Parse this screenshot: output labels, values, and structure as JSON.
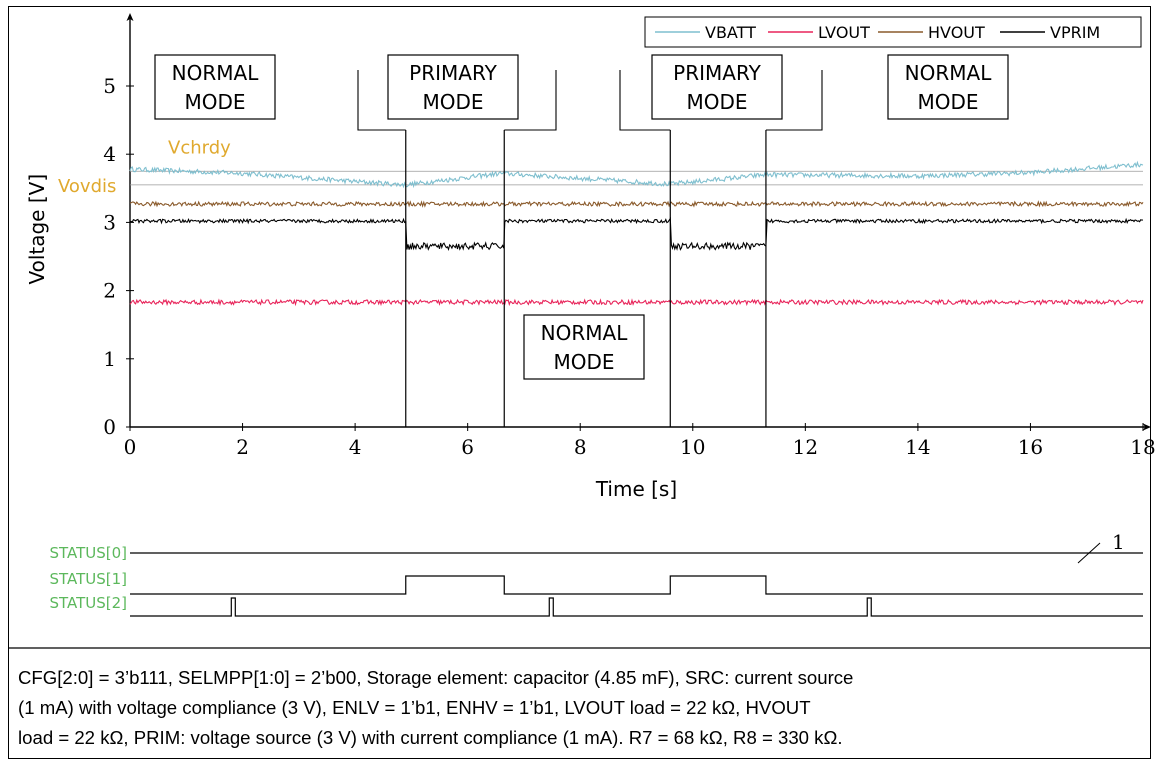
{
  "chart_data": {
    "type": "line",
    "xlabel": "Time [s]",
    "ylabel": "Voltage [V]",
    "xlim": [
      0,
      18
    ],
    "ylim": [
      0,
      5.8
    ],
    "x_ticks": [
      0,
      2,
      4,
      6,
      8,
      10,
      12,
      14,
      16,
      18
    ],
    "y_ticks": [
      0,
      1,
      2,
      3,
      4,
      5
    ],
    "grid": false,
    "legend_position": "top-right",
    "series": [
      {
        "name": "VBATT",
        "color": "#7fbfcf",
        "x": [
          0,
          2,
          4,
          4.9,
          6.6,
          9.6,
          11.3,
          14,
          16,
          18
        ],
        "y": [
          3.78,
          3.72,
          3.6,
          3.55,
          3.72,
          3.56,
          3.7,
          3.68,
          3.73,
          3.85
        ]
      },
      {
        "name": "LVOUT",
        "color": "#e8245a",
        "x": [
          0,
          18
        ],
        "y": [
          1.83,
          1.83
        ]
      },
      {
        "name": "HVOUT",
        "color": "#8a5a2b",
        "x": [
          0,
          18
        ],
        "y": [
          3.27,
          3.27
        ]
      },
      {
        "name": "VPRIM",
        "color": "#000000",
        "x": [
          0,
          4.9,
          4.9,
          6.65,
          6.65,
          9.6,
          9.6,
          11.3,
          11.3,
          18
        ],
        "y": [
          3.02,
          3.02,
          2.65,
          2.65,
          3.02,
          3.02,
          2.65,
          2.65,
          3.02,
          3.02
        ]
      }
    ],
    "reference_lines": [
      {
        "label": "Vchrdy",
        "y": 3.75,
        "color": "#e0a92e"
      },
      {
        "label": "Vovdis",
        "y": 3.55,
        "color": "#e0a92e"
      }
    ],
    "transitions_s": [
      4.9,
      6.65,
      9.6,
      11.3
    ],
    "mode_labels": [
      {
        "line1": "NORMAL",
        "line2": "MODE"
      },
      {
        "line1": "PRIMARY",
        "line2": "MODE"
      },
      {
        "line1": "NORMAL",
        "line2": "MODE"
      },
      {
        "line1": "PRIMARY",
        "line2": "MODE"
      },
      {
        "line1": "NORMAL",
        "line2": "MODE"
      }
    ],
    "status_signals": [
      {
        "name": "STATUS[0]",
        "note": "1",
        "high_intervals": [
          [
            0,
            18
          ]
        ]
      },
      {
        "name": "STATUS[1]",
        "high_intervals": [
          [
            4.9,
            6.65
          ],
          [
            9.6,
            11.3
          ]
        ]
      },
      {
        "name": "STATUS[2]",
        "pulses_at": [
          1.8,
          7.45,
          13.1
        ]
      }
    ],
    "status_color": "#5cb85c"
  },
  "caption": {
    "line1": "CFG[2:0] = 3’b111, SELMPP[1:0] = 2’b00, Storage element: capacitor (4.85 mF), SRC: current source",
    "line2": "(1 mA) with voltage compliance (3 V), ENLV = 1’b1, ENHV = 1’b1, LVOUT load = 22 kΩ, HVOUT",
    "line3": "load = 22 kΩ, PRIM: voltage source (3 V) with current compliance (1 mA). R7 = 68 kΩ, R8 = 330 kΩ."
  }
}
